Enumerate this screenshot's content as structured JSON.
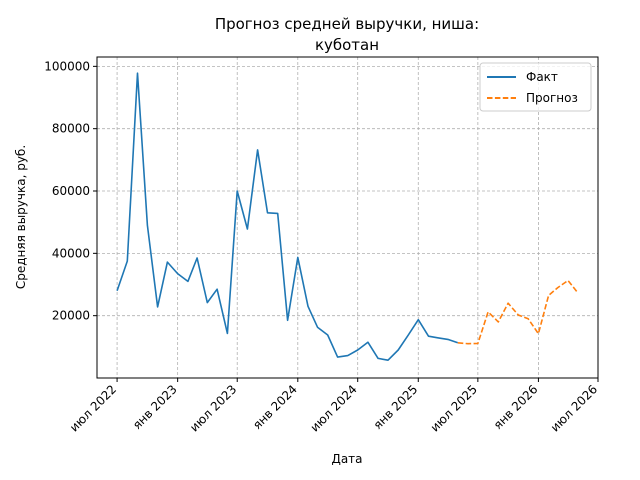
{
  "chart_data": {
    "type": "line",
    "title_lines": [
      "Прогноз средней выручки, ниша:",
      "куботан"
    ],
    "xlabel": "Дата",
    "ylabel": "Средняя выручка, руб.",
    "grid": true,
    "legend_position": "top-right",
    "x_axis_type": "date",
    "xlim": [
      "2022-05-01",
      "2026-07-01"
    ],
    "ylim": [
      0,
      103000
    ],
    "y_ticks": [
      {
        "value": 20000,
        "label": "20000"
      },
      {
        "value": 40000,
        "label": "40000"
      },
      {
        "value": 60000,
        "label": "60000"
      },
      {
        "value": 80000,
        "label": "80000"
      },
      {
        "value": 100000,
        "label": "100000"
      }
    ],
    "x_ticks": [
      {
        "value": "2022-07-01",
        "label": "июл 2022"
      },
      {
        "value": "2023-01-01",
        "label": "янв 2023"
      },
      {
        "value": "2023-07-01",
        "label": "июл 2023"
      },
      {
        "value": "2024-01-01",
        "label": "янв 2024"
      },
      {
        "value": "2024-07-01",
        "label": "июл 2024"
      },
      {
        "value": "2025-01-01",
        "label": "янв 2025"
      },
      {
        "value": "2025-07-01",
        "label": "июл 2025"
      },
      {
        "value": "2026-01-01",
        "label": "янв 2026"
      },
      {
        "value": "2026-07-01",
        "label": "июл 2026"
      }
    ],
    "series": [
      {
        "name": "Факт",
        "color": "#1f77b4",
        "style": "solid",
        "points": [
          {
            "x": "2022-07-01",
            "y": 28000
          },
          {
            "x": "2022-08-01",
            "y": 37500
          },
          {
            "x": "2022-09-01",
            "y": 97800
          },
          {
            "x": "2022-10-01",
            "y": 49000
          },
          {
            "x": "2022-11-01",
            "y": 22800
          },
          {
            "x": "2022-12-01",
            "y": 37200
          },
          {
            "x": "2023-01-01",
            "y": 33500
          },
          {
            "x": "2023-02-01",
            "y": 31000
          },
          {
            "x": "2023-03-01",
            "y": 38500
          },
          {
            "x": "2023-04-01",
            "y": 24200
          },
          {
            "x": "2023-05-01",
            "y": 28500
          },
          {
            "x": "2023-06-01",
            "y": 14300
          },
          {
            "x": "2023-07-01",
            "y": 60000
          },
          {
            "x": "2023-08-01",
            "y": 47800
          },
          {
            "x": "2023-09-01",
            "y": 73200
          },
          {
            "x": "2023-10-01",
            "y": 53000
          },
          {
            "x": "2023-11-01",
            "y": 52800
          },
          {
            "x": "2023-12-01",
            "y": 18500
          },
          {
            "x": "2024-01-01",
            "y": 38700
          },
          {
            "x": "2024-02-01",
            "y": 23000
          },
          {
            "x": "2024-03-01",
            "y": 16300
          },
          {
            "x": "2024-04-01",
            "y": 13800
          },
          {
            "x": "2024-05-01",
            "y": 6700
          },
          {
            "x": "2024-06-01",
            "y": 7200
          },
          {
            "x": "2024-07-01",
            "y": 9000
          },
          {
            "x": "2024-08-01",
            "y": 11500
          },
          {
            "x": "2024-09-01",
            "y": 6300
          },
          {
            "x": "2024-10-01",
            "y": 5700
          },
          {
            "x": "2024-11-01",
            "y": 9000
          },
          {
            "x": "2024-12-01",
            "y": 13700
          },
          {
            "x": "2025-01-01",
            "y": 18700
          },
          {
            "x": "2025-02-01",
            "y": 13400
          },
          {
            "x": "2025-03-01",
            "y": 12900
          },
          {
            "x": "2025-04-01",
            "y": 12400
          },
          {
            "x": "2025-05-01",
            "y": 11300
          }
        ]
      },
      {
        "name": "Прогноз",
        "color": "#ff7f0e",
        "style": "dashed",
        "points": [
          {
            "x": "2025-05-01",
            "y": 11300
          },
          {
            "x": "2025-06-01",
            "y": 11000
          },
          {
            "x": "2025-07-01",
            "y": 11100
          },
          {
            "x": "2025-08-01",
            "y": 21200
          },
          {
            "x": "2025-09-01",
            "y": 18000
          },
          {
            "x": "2025-10-01",
            "y": 24000
          },
          {
            "x": "2025-11-01",
            "y": 20200
          },
          {
            "x": "2025-12-01",
            "y": 19000
          },
          {
            "x": "2026-01-01",
            "y": 14200
          },
          {
            "x": "2026-02-01",
            "y": 26500
          },
          {
            "x": "2026-03-01",
            "y": 29000
          },
          {
            "x": "2026-04-01",
            "y": 31300
          },
          {
            "x": "2026-05-01",
            "y": 27300
          }
        ]
      }
    ]
  }
}
